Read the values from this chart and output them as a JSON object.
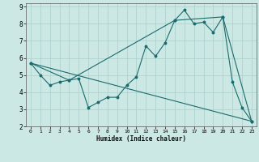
{
  "xlabel": "Humidex (Indice chaleur)",
  "bg_color": "#cce8e5",
  "grid_color": "#aacfcc",
  "line_color": "#1a6b6b",
  "xlim": [
    -0.5,
    23.5
  ],
  "ylim": [
    2,
    9.2
  ],
  "yticks": [
    2,
    3,
    4,
    5,
    6,
    7,
    8,
    9
  ],
  "xticks": [
    0,
    1,
    2,
    3,
    4,
    5,
    6,
    7,
    8,
    9,
    10,
    11,
    12,
    13,
    14,
    15,
    16,
    17,
    18,
    19,
    20,
    21,
    22,
    23
  ],
  "line1_x": [
    0,
    1,
    2,
    3,
    4,
    5,
    6,
    7,
    8,
    9,
    10,
    11,
    12,
    13,
    14,
    15,
    16,
    17,
    18,
    19,
    20,
    21,
    22,
    23
  ],
  "line1_y": [
    5.7,
    5.0,
    4.4,
    4.6,
    4.7,
    4.8,
    3.1,
    3.4,
    3.7,
    3.7,
    4.4,
    4.9,
    6.7,
    6.1,
    6.9,
    8.2,
    8.8,
    8.0,
    8.1,
    7.5,
    8.4,
    4.6,
    3.1,
    2.3
  ],
  "line2_x": [
    0,
    4,
    15,
    20,
    23
  ],
  "line2_y": [
    5.7,
    4.7,
    8.2,
    8.4,
    2.3
  ],
  "line3_x": [
    0,
    23
  ],
  "line3_y": [
    5.7,
    2.3
  ]
}
